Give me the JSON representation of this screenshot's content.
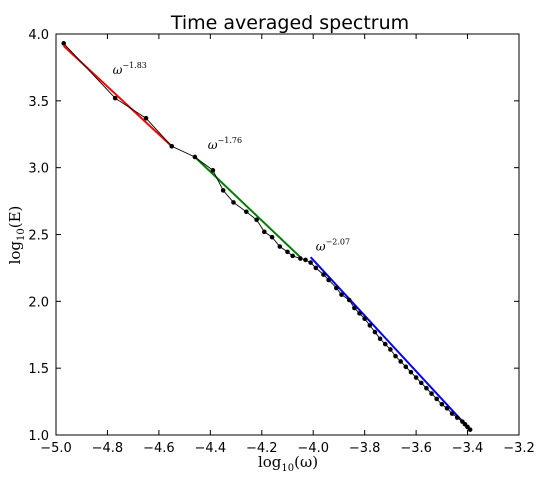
{
  "chart_data": {
    "type": "line",
    "title": "Time averaged spectrum",
    "xlabel": "log10(ω)",
    "ylabel": "log10(E)",
    "xlim": [
      -5.0,
      -3.2
    ],
    "ylim": [
      1.0,
      4.0
    ],
    "xticks": [
      -5.0,
      -4.8,
      -4.6,
      -4.4,
      -4.2,
      -4.0,
      -3.8,
      -3.6,
      -3.4,
      -3.2
    ],
    "yticks": [
      1.0,
      1.5,
      2.0,
      2.5,
      3.0,
      3.5,
      4.0
    ],
    "xtick_labels": [
      "−5.0",
      "−4.8",
      "−4.6",
      "−4.4",
      "−4.2",
      "−4.0",
      "−3.8",
      "−3.6",
      "−3.4",
      "−3.2"
    ],
    "ytick_labels": [
      "1.0",
      "1.5",
      "2.0",
      "2.5",
      "3.0",
      "3.5",
      "4.0"
    ],
    "grid": false,
    "data_series": {
      "color": "#000000",
      "x": [
        -4.97,
        -4.77,
        -4.65,
        -4.55,
        -4.46,
        -4.39,
        -4.35,
        -4.31,
        -4.26,
        -4.22,
        -4.19,
        -4.16,
        -4.13,
        -4.1,
        -4.08,
        -4.05,
        -4.03,
        -4.01,
        -3.99,
        -3.96,
        -3.94,
        -3.91,
        -3.89,
        -3.86,
        -3.84,
        -3.82,
        -3.8,
        -3.78,
        -3.76,
        -3.74,
        -3.72,
        -3.7,
        -3.68,
        -3.66,
        -3.64,
        -3.62,
        -3.6,
        -3.58,
        -3.56,
        -3.54,
        -3.52,
        -3.5,
        -3.48,
        -3.46,
        -3.44,
        -3.42,
        -3.41,
        -3.4,
        -3.39
      ],
      "y": [
        3.93,
        3.52,
        3.37,
        3.16,
        3.08,
        2.98,
        2.83,
        2.74,
        2.67,
        2.61,
        2.52,
        2.48,
        2.41,
        2.37,
        2.34,
        2.32,
        2.31,
        2.29,
        2.25,
        2.2,
        2.16,
        2.1,
        2.05,
        2.01,
        1.95,
        1.91,
        1.87,
        1.82,
        1.77,
        1.72,
        1.68,
        1.64,
        1.59,
        1.55,
        1.51,
        1.47,
        1.43,
        1.39,
        1.35,
        1.31,
        1.27,
        1.23,
        1.2,
        1.16,
        1.13,
        1.1,
        1.08,
        1.06,
        1.04
      ]
    },
    "fits": [
      {
        "color": "#ff0000",
        "x": [
          -4.97,
          -4.55
        ],
        "y": [
          3.91,
          3.16
        ],
        "label": "ω",
        "exponent": "−1.83",
        "label_x": -4.78,
        "label_y": 3.7
      },
      {
        "color": "#008000",
        "x": [
          -4.46,
          -4.05
        ],
        "y": [
          3.08,
          2.33
        ],
        "label": "ω",
        "exponent": "−1.76",
        "label_x": -4.41,
        "label_y": 3.14
      },
      {
        "color": "#0000ff",
        "x": [
          -4.01,
          -3.39
        ],
        "y": [
          2.33,
          1.04
        ],
        "label": "ω",
        "exponent": "−2.07",
        "label_x": -3.99,
        "label_y": 2.38
      }
    ]
  }
}
